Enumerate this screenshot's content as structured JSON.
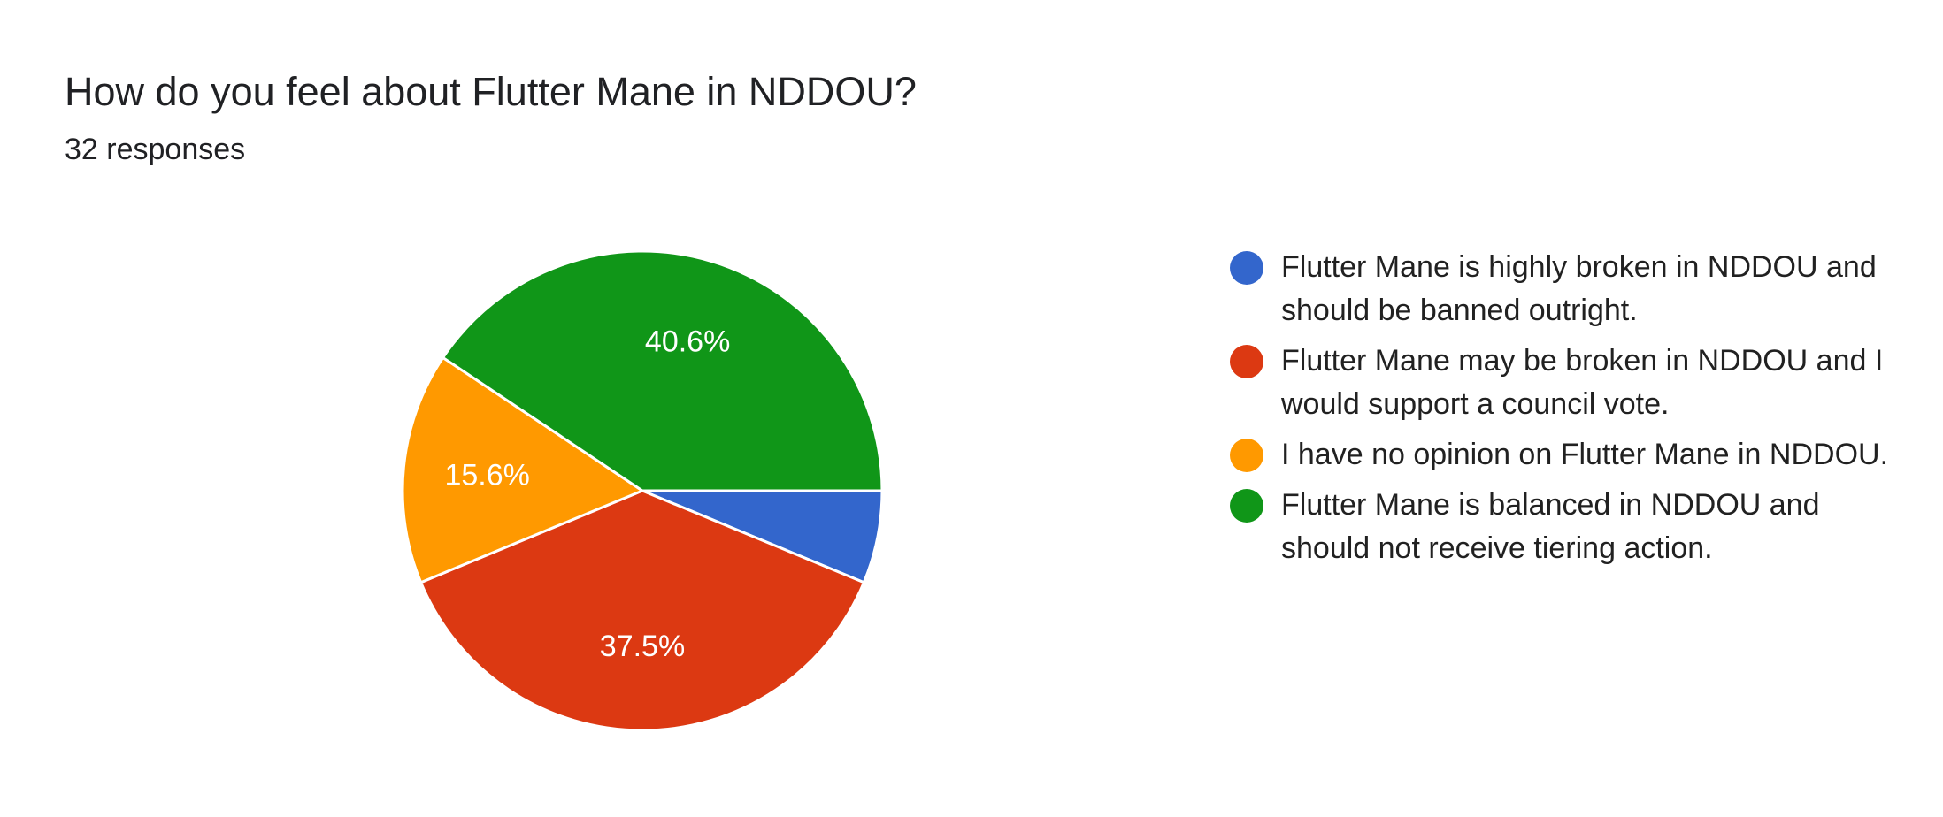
{
  "question": {
    "title": "How do you feel about Flutter Mane in NDDOU?",
    "responses": "32 responses"
  },
  "colors": {
    "blue": "#3366cc",
    "red": "#dc3912",
    "orange": "#ff9900",
    "green": "#109618",
    "slice_border": "#ffffff",
    "label_text": "#ffffff"
  },
  "chart_data": {
    "type": "pie",
    "total": 32,
    "legend_position": "right",
    "start": "3 o'clock, clockwise",
    "slices": [
      {
        "label": "Flutter Mane is highly broken in NDDOU and should be banned outright.",
        "count": 2,
        "percent": 6.3,
        "percent_label": "",
        "color": "#3366cc"
      },
      {
        "label": "Flutter Mane may be broken in NDDOU and I would support a council vote.",
        "count": 12,
        "percent": 37.5,
        "percent_label": "37.5%",
        "color": "#dc3912"
      },
      {
        "label": "I have no opinion on Flutter Mane in NDDOU.",
        "count": 5,
        "percent": 15.6,
        "percent_label": "15.6%",
        "color": "#ff9900"
      },
      {
        "label": "Flutter Mane is balanced in NDDOU and should not receive tiering action.",
        "count": 13,
        "percent": 40.6,
        "percent_label": "40.6%",
        "color": "#109618"
      }
    ]
  }
}
